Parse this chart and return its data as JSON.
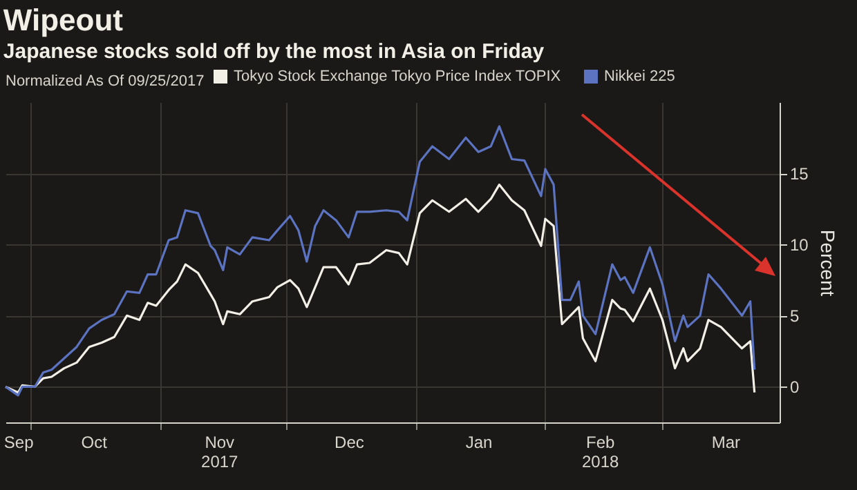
{
  "chart_data": {
    "type": "line",
    "title": "Wipeout",
    "subtitle": "Japanese stocks sold off by the most in Asia on Friday",
    "ylabel": "Percent",
    "legend_title": "Normalized As Of 09/25/2017",
    "legend": "top",
    "grid": true,
    "x": [
      "2017-09-25",
      "2017-09-28",
      "2017-09-29",
      "2017-10-02",
      "2017-10-04",
      "2017-10-06",
      "2017-10-09",
      "2017-10-12",
      "2017-10-15",
      "2017-10-18",
      "2017-10-21",
      "2017-10-24",
      "2017-10-27",
      "2017-10-29",
      "2017-10-31",
      "2017-11-03",
      "2017-11-05",
      "2017-11-07",
      "2017-11-10",
      "2017-11-13",
      "2017-11-14",
      "2017-11-16",
      "2017-11-17",
      "2017-11-20",
      "2017-11-23",
      "2017-11-27",
      "2017-11-29",
      "2017-12-02",
      "2017-12-04",
      "2017-12-06",
      "2017-12-08",
      "2017-12-10",
      "2017-12-13",
      "2017-12-16",
      "2017-12-18",
      "2017-12-21",
      "2017-12-25",
      "2017-12-28",
      "2017-12-30",
      "2018-01-02",
      "2018-01-05",
      "2018-01-09",
      "2018-01-13",
      "2018-01-16",
      "2018-01-19",
      "2018-01-21",
      "2018-01-24",
      "2018-01-27",
      "2018-01-31",
      "2018-02-01",
      "2018-02-03",
      "2018-02-05",
      "2018-02-07",
      "2018-02-09",
      "2018-02-10",
      "2018-02-13",
      "2018-02-17",
      "2018-02-19",
      "2018-02-20",
      "2018-02-22",
      "2018-02-26",
      "2018-03-01",
      "2018-03-04",
      "2018-03-06",
      "2018-03-07",
      "2018-03-10",
      "2018-03-12",
      "2018-03-15",
      "2018-03-20",
      "2018-03-22",
      "2018-03-23"
    ],
    "series": [
      {
        "name": "Tokyo Stock Exchange Tokyo Price Index TOPIX",
        "color": "#f2efe6",
        "values": [
          0,
          -0.4,
          0.1,
          0,
          0.6,
          0.7,
          1.3,
          1.7,
          2.8,
          3.1,
          3.5,
          5.0,
          4.7,
          5.9,
          5.7,
          6.8,
          7.4,
          8.6,
          8.0,
          6.5,
          6.0,
          4.4,
          5.3,
          5.1,
          6.0,
          6.3,
          7.0,
          7.5,
          6.9,
          5.6,
          7.0,
          8.4,
          8.4,
          7.2,
          8.6,
          8.7,
          9.6,
          9.4,
          8.6,
          12.2,
          13.1,
          12.3,
          13.2,
          12.3,
          13.2,
          14.2,
          13.1,
          12.4,
          9.9,
          11.8,
          11.3,
          4.4,
          5.0,
          5.6,
          3.4,
          1.8,
          6.1,
          5.5,
          5.4,
          4.6,
          6.9,
          4.7,
          1.3,
          2.7,
          1.8,
          2.7,
          4.7,
          4.2,
          2.7,
          3.2,
          -0.4
        ]
      },
      {
        "name": "Nikkei 225",
        "color": "#5b73c0",
        "values": [
          0,
          -0.6,
          0,
          0,
          1.0,
          1.2,
          2.0,
          2.8,
          4.1,
          4.7,
          5.1,
          6.7,
          6.6,
          7.9,
          7.9,
          10.3,
          10.5,
          12.4,
          12.2,
          9.9,
          9.6,
          8.2,
          9.8,
          9.3,
          10.5,
          10.3,
          11.0,
          12.0,
          11.0,
          8.8,
          11.3,
          12.4,
          11.7,
          10.5,
          12.3,
          12.3,
          12.4,
          12.3,
          11.7,
          15.8,
          16.9,
          16.0,
          17.5,
          16.5,
          16.9,
          18.3,
          16.0,
          15.9,
          13.4,
          15.3,
          14.2,
          6.1,
          6.1,
          7.4,
          5.0,
          3.7,
          8.6,
          7.5,
          7.7,
          6.6,
          9.8,
          7.2,
          3.2,
          5.0,
          4.2,
          5.0,
          7.9,
          6.9,
          5.0,
          6.0,
          1.2
        ]
      }
    ],
    "xlim": [
      "2017-09-25",
      "2018-03-29"
    ],
    "xticks": [
      {
        "value": "2017-09-28",
        "label": "Sep"
      },
      {
        "value": "2017-10-01",
        "label": null
      },
      {
        "value": "2017-10-16",
        "label": "Oct"
      },
      {
        "value": "2017-11-01",
        "label": null
      },
      {
        "value": "2017-11-15",
        "label": "Nov\n2017"
      },
      {
        "value": "2017-12-01",
        "label": null
      },
      {
        "value": "2017-12-16",
        "label": "Dec"
      },
      {
        "value": "2018-01-01",
        "label": null
      },
      {
        "value": "2018-01-16",
        "label": "Jan"
      },
      {
        "value": "2018-02-01",
        "label": null
      },
      {
        "value": "2018-02-14",
        "label": "Feb\n2018"
      },
      {
        "value": "2018-03-01",
        "label": null
      },
      {
        "value": "2018-03-16",
        "label": "Mar"
      }
    ],
    "ylim": [
      -2.5,
      20
    ],
    "yticks": [
      0,
      5,
      10,
      15
    ]
  }
}
